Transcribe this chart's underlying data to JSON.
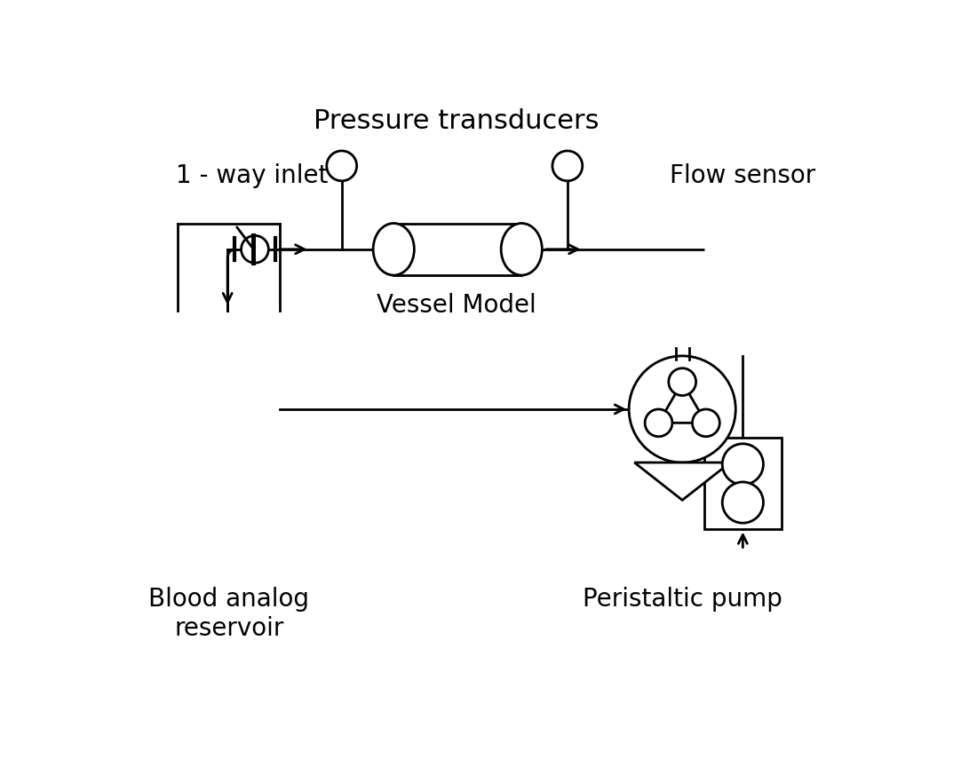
{
  "title": "Pressure transducers",
  "label_flow_sensor": "Flow sensor",
  "label_inlet": "1 - way inlet",
  "label_vessel": "Vessel Model",
  "label_reservoir": "Blood analog\nreservoir",
  "label_pump": "Peristaltic pump",
  "bg_color": "#ffffff",
  "line_color": "#000000",
  "font_size_title": 22,
  "font_size_labels": 20,
  "line_width": 2.0
}
